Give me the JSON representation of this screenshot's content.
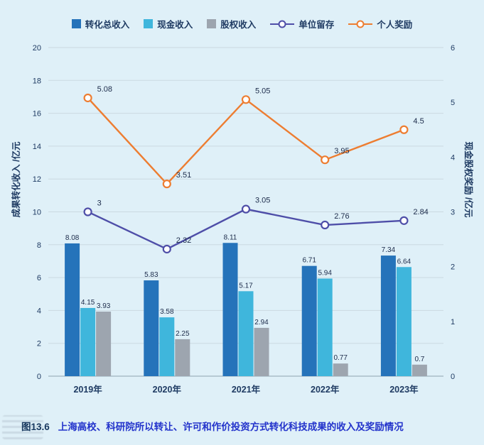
{
  "chart_data": {
    "type": "bar+line",
    "categories": [
      "2019年",
      "2020年",
      "2021年",
      "2022年",
      "2023年"
    ],
    "bar_series": [
      {
        "name": "转化总收入",
        "axis": "left",
        "color": "#2573BA",
        "values": [
          8.08,
          5.83,
          8.11,
          6.71,
          7.34
        ]
      },
      {
        "name": "现金收入",
        "axis": "left",
        "color": "#3FB6DC",
        "values": [
          4.15,
          3.58,
          5.17,
          5.94,
          6.64
        ]
      },
      {
        "name": "股权收入",
        "axis": "left",
        "color": "#9DA5AF",
        "values": [
          3.93,
          2.25,
          2.94,
          0.77,
          0.7
        ]
      }
    ],
    "line_series": [
      {
        "name": "单位留存",
        "axis": "right",
        "color": "#4E4EA8",
        "values": [
          3,
          2.32,
          3.05,
          2.76,
          2.84
        ]
      },
      {
        "name": "个人奖励",
        "axis": "right",
        "color": "#ED7D31",
        "values": [
          5.08,
          3.51,
          5.05,
          3.95,
          4.5
        ]
      }
    ],
    "left_axis": {
      "title": "成果转化收入 /亿元",
      "min": 0,
      "max": 20,
      "step": 2
    },
    "right_axis": {
      "title": "现金股权奖励 /亿元",
      "min": 0,
      "max": 6,
      "step": 1
    },
    "grid": true,
    "legend_position": "top"
  },
  "caption": {
    "number": "图13.6",
    "text": "上海高校、科研院所以转让、许可和作价投资方式转化科技成果的收入及奖励情况"
  },
  "colors": {
    "background": "#DFF0F8",
    "grid": "#CBD9E1",
    "axis_line": "#9FB3BF",
    "axis_text": "#1F3B63",
    "data_label_text": "#1C2B4A",
    "caption_number": "#17375E",
    "caption_text": "#2333CB"
  }
}
